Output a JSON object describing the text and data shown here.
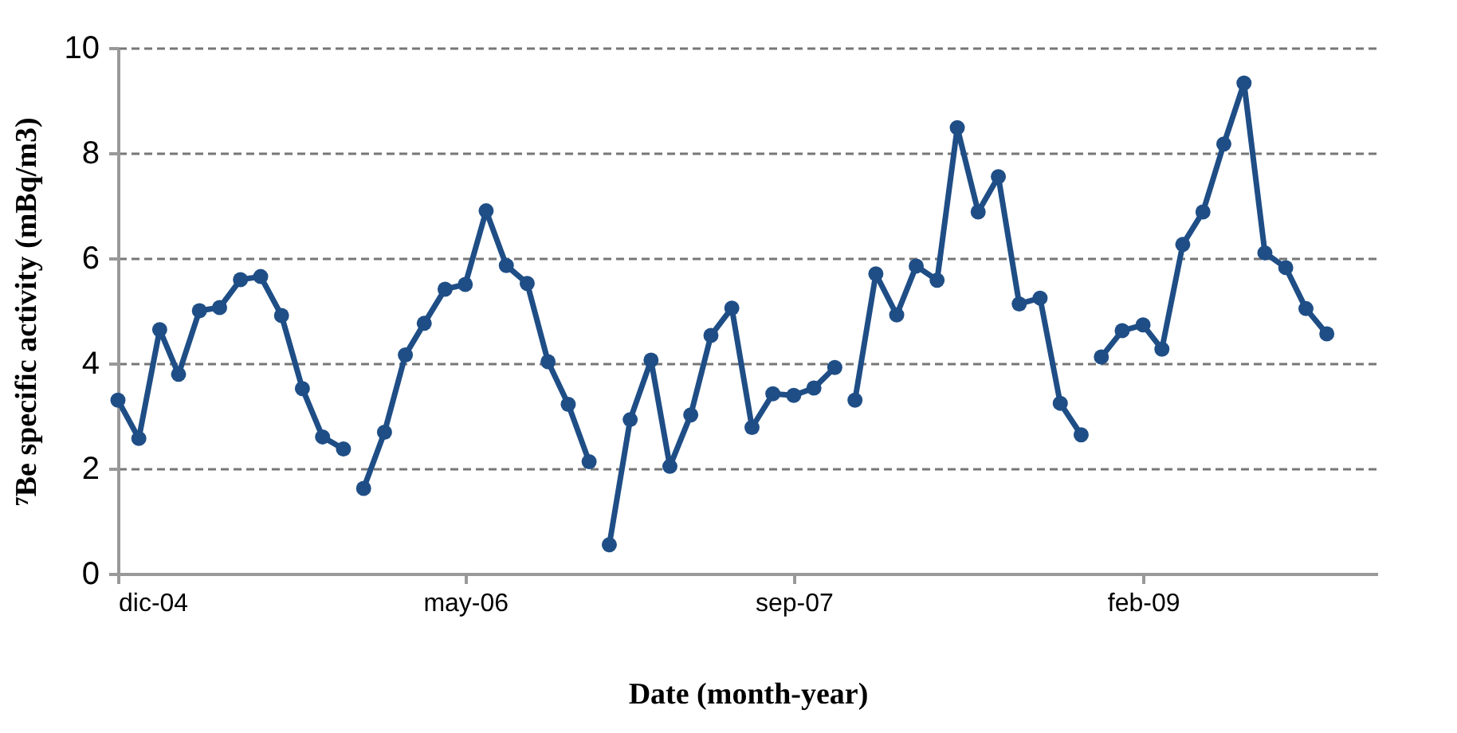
{
  "chart_data": {
    "type": "line",
    "xlabel": "Date (month-year)",
    "ylabel": "⁷Be specific activity (mBq/m3)",
    "xlim": [
      "2004-12",
      "2010-01-15"
    ],
    "xticks": [
      {
        "value": "2004-12",
        "label": "dic-04"
      },
      {
        "value": "2006-05",
        "label": "may-06"
      },
      {
        "value": "2007-09",
        "label": "sep-07"
      },
      {
        "value": "2009-02",
        "label": "feb-09"
      }
    ],
    "ylim": [
      0,
      10
    ],
    "yticks": [
      0,
      2,
      4,
      6,
      8,
      10
    ],
    "grid": "y",
    "marker": "circle",
    "line_style": "solid",
    "series": [
      {
        "color": "#1f4e86",
        "x": [
          "2004-12",
          "2005-01",
          "2005-02",
          "2005-03",
          "2005-04",
          "2005-05",
          "2005-06",
          "2005-07",
          "2005-08",
          "2005-09",
          "2005-10",
          "2005-11"
        ],
        "values": [
          3.3,
          2.57,
          4.64,
          3.79,
          5.0,
          5.06,
          5.59,
          5.65,
          4.91,
          3.52,
          2.6,
          2.37
        ]
      },
      {
        "color": "#1f4e86",
        "x": [
          "2005-12",
          "2006-01",
          "2006-02",
          "2006-03",
          "2006-04",
          "2006-05",
          "2006-06",
          "2006-07",
          "2006-08",
          "2006-09",
          "2006-10",
          "2006-11"
        ],
        "values": [
          1.62,
          2.69,
          4.16,
          4.76,
          5.41,
          5.5,
          6.9,
          5.86,
          5.52,
          4.03,
          3.22,
          2.13
        ]
      },
      {
        "color": "#1f4e86",
        "x": [
          "2006-12",
          "2007-01",
          "2007-02",
          "2007-03",
          "2007-04",
          "2007-05",
          "2007-06",
          "2007-07",
          "2007-08",
          "2007-09",
          "2007-10",
          "2007-11"
        ],
        "values": [
          0.55,
          2.93,
          4.06,
          2.04,
          3.02,
          4.53,
          5.05,
          2.78,
          3.42,
          3.39,
          3.53,
          3.92
        ]
      },
      {
        "color": "#1f4e86",
        "x": [
          "2007-12",
          "2008-01",
          "2008-02",
          "2008-03",
          "2008-04",
          "2008-05",
          "2008-06",
          "2008-07",
          "2008-08",
          "2008-09",
          "2008-10",
          "2008-11"
        ],
        "values": [
          3.3,
          5.7,
          4.92,
          5.85,
          5.58,
          8.48,
          6.88,
          7.55,
          5.13,
          5.24,
          3.24,
          2.64
        ]
      },
      {
        "color": "#1f4e86",
        "x": [
          "2008-12",
          "2009-01",
          "2009-02",
          "2009-03",
          "2009-04",
          "2009-05",
          "2009-06",
          "2009-07",
          "2009-08",
          "2009-09",
          "2009-10",
          "2009-11"
        ],
        "values": [
          4.12,
          4.62,
          4.73,
          4.27,
          6.26,
          6.88,
          8.17,
          9.33,
          6.1,
          5.82,
          5.04,
          4.56
        ]
      }
    ]
  }
}
